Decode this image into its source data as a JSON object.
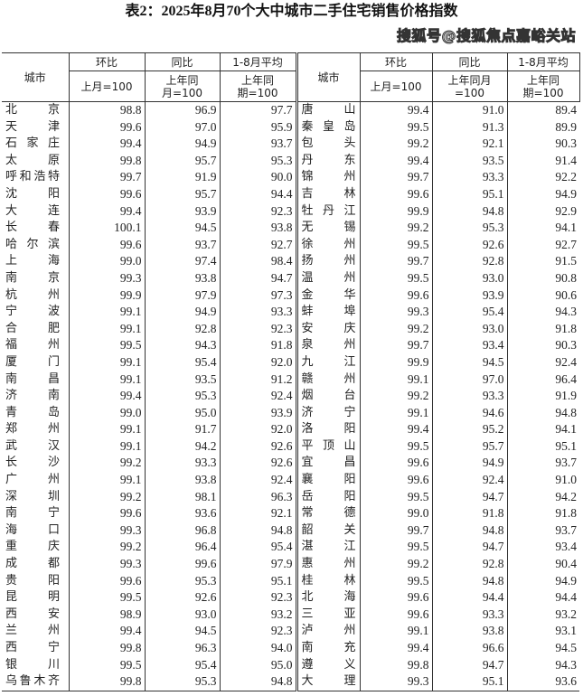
{
  "title": "表2：2025年8月70个大中城市二手住宅销售价格指数",
  "headers": {
    "city": "城市",
    "mom": "环比",
    "yoy": "同比",
    "avg": "1-8月平均",
    "mom_base": "上月=100",
    "yoy_base": "上年同月=100",
    "avg_base": "上年同期=100"
  },
  "left_rows": [
    {
      "city": "北京",
      "mom": "98.8",
      "yoy": "96.9",
      "avg": "97.7"
    },
    {
      "city": "天津",
      "mom": "99.6",
      "yoy": "97.0",
      "avg": "95.9"
    },
    {
      "city": "石家庄",
      "mom": "99.4",
      "yoy": "94.9",
      "avg": "93.7"
    },
    {
      "city": "太原",
      "mom": "99.8",
      "yoy": "95.7",
      "avg": "95.3"
    },
    {
      "city": "呼和浩特",
      "mom": "99.7",
      "yoy": "91.9",
      "avg": "90.0"
    },
    {
      "city": "沈阳",
      "mom": "99.6",
      "yoy": "95.7",
      "avg": "94.4"
    },
    {
      "city": "大连",
      "mom": "99.4",
      "yoy": "93.9",
      "avg": "92.3"
    },
    {
      "city": "长春",
      "mom": "100.1",
      "yoy": "94.5",
      "avg": "93.8"
    },
    {
      "city": "哈尔滨",
      "mom": "99.6",
      "yoy": "93.7",
      "avg": "92.7"
    },
    {
      "city": "上海",
      "mom": "99.0",
      "yoy": "97.4",
      "avg": "98.4"
    },
    {
      "city": "南京",
      "mom": "99.3",
      "yoy": "93.8",
      "avg": "94.7"
    },
    {
      "city": "杭州",
      "mom": "99.9",
      "yoy": "97.9",
      "avg": "97.3"
    },
    {
      "city": "宁波",
      "mom": "99.1",
      "yoy": "94.9",
      "avg": "93.3"
    },
    {
      "city": "合肥",
      "mom": "99.1",
      "yoy": "92.8",
      "avg": "92.3"
    },
    {
      "city": "福州",
      "mom": "99.5",
      "yoy": "94.3",
      "avg": "91.8"
    },
    {
      "city": "厦门",
      "mom": "99.1",
      "yoy": "95.4",
      "avg": "92.0"
    },
    {
      "city": "南昌",
      "mom": "99.1",
      "yoy": "93.5",
      "avg": "91.2"
    },
    {
      "city": "济南",
      "mom": "99.4",
      "yoy": "95.3",
      "avg": "92.4"
    },
    {
      "city": "青岛",
      "mom": "99.0",
      "yoy": "95.0",
      "avg": "93.9"
    },
    {
      "city": "郑州",
      "mom": "99.1",
      "yoy": "91.7",
      "avg": "92.0"
    },
    {
      "city": "武汉",
      "mom": "99.1",
      "yoy": "94.2",
      "avg": "92.6"
    },
    {
      "city": "长沙",
      "mom": "99.2",
      "yoy": "93.3",
      "avg": "92.6"
    },
    {
      "city": "广州",
      "mom": "99.1",
      "yoy": "93.8",
      "avg": "92.4"
    },
    {
      "city": "深圳",
      "mom": "99.2",
      "yoy": "98.1",
      "avg": "96.3"
    },
    {
      "city": "南宁",
      "mom": "99.6",
      "yoy": "93.6",
      "avg": "92.1"
    },
    {
      "city": "海口",
      "mom": "99.3",
      "yoy": "96.8",
      "avg": "94.8"
    },
    {
      "city": "重庆",
      "mom": "99.2",
      "yoy": "96.4",
      "avg": "95.4"
    },
    {
      "city": "成都",
      "mom": "99.3",
      "yoy": "99.6",
      "avg": "97.9"
    },
    {
      "city": "贵阳",
      "mom": "99.6",
      "yoy": "95.3",
      "avg": "95.1"
    },
    {
      "city": "昆明",
      "mom": "99.5",
      "yoy": "92.6",
      "avg": "92.3"
    },
    {
      "city": "西安",
      "mom": "98.9",
      "yoy": "93.0",
      "avg": "93.2"
    },
    {
      "city": "兰州",
      "mom": "99.4",
      "yoy": "94.5",
      "avg": "92.3"
    },
    {
      "city": "西宁",
      "mom": "99.8",
      "yoy": "96.3",
      "avg": "94.0"
    },
    {
      "city": "银川",
      "mom": "99.5",
      "yoy": "95.4",
      "avg": "95.0"
    },
    {
      "city": "乌鲁木齐",
      "mom": "99.8",
      "yoy": "95.3",
      "avg": "94.8"
    }
  ],
  "right_rows": [
    {
      "city": "唐山",
      "mom": "99.4",
      "yoy": "91.0",
      "avg": "89.4"
    },
    {
      "city": "秦皇岛",
      "mom": "99.5",
      "yoy": "91.3",
      "avg": "89.9"
    },
    {
      "city": "包头",
      "mom": "99.2",
      "yoy": "92.1",
      "avg": "90.3"
    },
    {
      "city": "丹东",
      "mom": "99.4",
      "yoy": "93.5",
      "avg": "91.4"
    },
    {
      "city": "锦州",
      "mom": "99.7",
      "yoy": "93.3",
      "avg": "92.2"
    },
    {
      "city": "吉林",
      "mom": "99.6",
      "yoy": "95.1",
      "avg": "94.9"
    },
    {
      "city": "牡丹江",
      "mom": "99.9",
      "yoy": "94.8",
      "avg": "92.9"
    },
    {
      "city": "无锡",
      "mom": "99.2",
      "yoy": "95.3",
      "avg": "94.1"
    },
    {
      "city": "徐州",
      "mom": "99.5",
      "yoy": "92.6",
      "avg": "92.7"
    },
    {
      "city": "扬州",
      "mom": "99.7",
      "yoy": "92.8",
      "avg": "91.5"
    },
    {
      "city": "温州",
      "mom": "99.5",
      "yoy": "93.0",
      "avg": "90.8"
    },
    {
      "city": "金华",
      "mom": "99.6",
      "yoy": "93.9",
      "avg": "90.6"
    },
    {
      "city": "蚌埠",
      "mom": "99.3",
      "yoy": "95.4",
      "avg": "94.3"
    },
    {
      "city": "安庆",
      "mom": "99.2",
      "yoy": "93.0",
      "avg": "91.8"
    },
    {
      "city": "泉州",
      "mom": "99.7",
      "yoy": "93.4",
      "avg": "90.3"
    },
    {
      "city": "九江",
      "mom": "99.9",
      "yoy": "94.5",
      "avg": "92.4"
    },
    {
      "city": "赣州",
      "mom": "99.1",
      "yoy": "97.0",
      "avg": "96.4"
    },
    {
      "city": "烟台",
      "mom": "99.2",
      "yoy": "93.3",
      "avg": "91.9"
    },
    {
      "city": "济宁",
      "mom": "99.1",
      "yoy": "94.6",
      "avg": "94.8"
    },
    {
      "city": "洛阳",
      "mom": "99.4",
      "yoy": "95.2",
      "avg": "94.1"
    },
    {
      "city": "平顶山",
      "mom": "99.5",
      "yoy": "95.7",
      "avg": "95.1"
    },
    {
      "city": "宜昌",
      "mom": "99.6",
      "yoy": "94.9",
      "avg": "93.7"
    },
    {
      "city": "襄阳",
      "mom": "99.6",
      "yoy": "92.4",
      "avg": "91.0"
    },
    {
      "city": "岳阳",
      "mom": "99.5",
      "yoy": "94.7",
      "avg": "94.2"
    },
    {
      "city": "常德",
      "mom": "99.0",
      "yoy": "91.8",
      "avg": "91.8"
    },
    {
      "city": "韶关",
      "mom": "99.7",
      "yoy": "94.8",
      "avg": "93.7"
    },
    {
      "city": "湛江",
      "mom": "99.5",
      "yoy": "94.7",
      "avg": "93.4"
    },
    {
      "city": "惠州",
      "mom": "99.2",
      "yoy": "92.8",
      "avg": "90.4"
    },
    {
      "city": "桂林",
      "mom": "99.5",
      "yoy": "94.8",
      "avg": "94.9"
    },
    {
      "city": "北海",
      "mom": "99.6",
      "yoy": "94.4",
      "avg": "94.4"
    },
    {
      "city": "三亚",
      "mom": "99.6",
      "yoy": "93.3",
      "avg": "93.2"
    },
    {
      "city": "泸州",
      "mom": "99.1",
      "yoy": "93.8",
      "avg": "93.1"
    },
    {
      "city": "南充",
      "mom": "99.4",
      "yoy": "96.6",
      "avg": "94.5"
    },
    {
      "city": "遵义",
      "mom": "99.8",
      "yoy": "94.7",
      "avg": "94.3"
    },
    {
      "city": "大理",
      "mom": "99.3",
      "yoy": "95.1",
      "avg": "93.6"
    }
  ],
  "watermark": "搜狐号@搜狐焦点嘉峪关站"
}
